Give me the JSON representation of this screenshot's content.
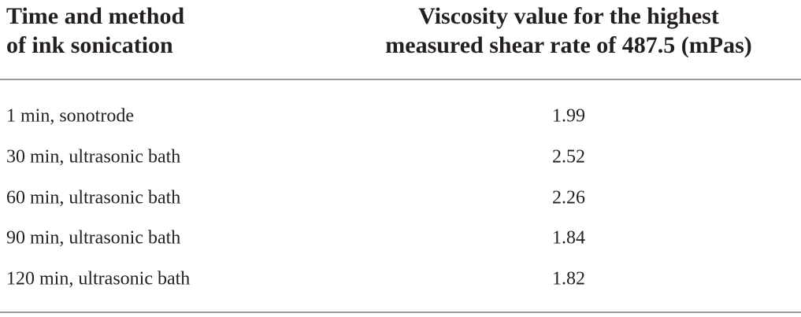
{
  "table": {
    "header": [
      [
        "Time and method",
        "of ink sonication"
      ],
      [
        "Viscosity value for the highest",
        "measured shear rate of 487.5 (mPas)"
      ]
    ],
    "rows": [
      [
        "1 min, sonotrode",
        1.99
      ],
      [
        "30 min, ultrasonic bath",
        2.52
      ],
      [
        "60 min, ultrasonic bath",
        2.26
      ],
      [
        "90 min, ultrasonic bath",
        1.84
      ],
      [
        "120 min, ultrasonic bath",
        1.82
      ]
    ]
  }
}
